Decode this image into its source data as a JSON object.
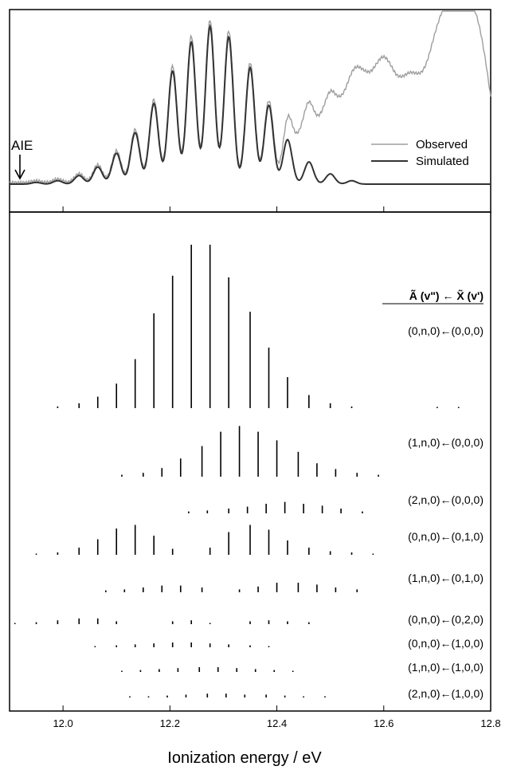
{
  "chart_data": [
    {
      "type": "line",
      "panel": "top",
      "xlim": [
        11.9,
        12.8
      ],
      "grid": false,
      "legend": {
        "placement": "right",
        "entries": [
          "Observed",
          "Simulated"
        ]
      },
      "annotation": {
        "text": "AIE",
        "x": 11.91
      },
      "colors": {
        "Observed": "#9e9e9e",
        "Simulated": "#333333"
      },
      "simulated_peaks": [
        {
          "x": 11.95,
          "y": 0.01
        },
        {
          "x": 11.99,
          "y": 0.02
        },
        {
          "x": 12.03,
          "y": 0.05
        },
        {
          "x": 12.065,
          "y": 0.1
        },
        {
          "x": 12.1,
          "y": 0.18
        },
        {
          "x": 12.135,
          "y": 0.3
        },
        {
          "x": 12.17,
          "y": 0.47
        },
        {
          "x": 12.205,
          "y": 0.66
        },
        {
          "x": 12.24,
          "y": 0.83
        },
        {
          "x": 12.275,
          "y": 0.92
        },
        {
          "x": 12.31,
          "y": 0.86
        },
        {
          "x": 12.35,
          "y": 0.68
        },
        {
          "x": 12.385,
          "y": 0.46
        },
        {
          "x": 12.42,
          "y": 0.26
        },
        {
          "x": 12.46,
          "y": 0.13
        },
        {
          "x": 12.5,
          "y": 0.06
        },
        {
          "x": 12.54,
          "y": 0.02
        }
      ],
      "observed_extra": [
        {
          "x": 12.45,
          "y": 0.32
        },
        {
          "x": 12.5,
          "y": 0.45
        },
        {
          "x": 12.55,
          "y": 0.65
        },
        {
          "x": 12.6,
          "y": 0.72
        },
        {
          "x": 12.65,
          "y": 0.6
        },
        {
          "x": 12.7,
          "y": 0.78
        },
        {
          "x": 12.74,
          "y": 1.0
        },
        {
          "x": 12.78,
          "y": 0.8
        }
      ]
    },
    {
      "type": "stick",
      "panel": "bottom",
      "xlim": [
        11.9,
        12.8
      ],
      "xticks": [
        12.0,
        12.2,
        12.4,
        12.6,
        12.8
      ],
      "xtick_labels": [
        "12.0",
        "12.2",
        "12.4",
        "12.6",
        "12.8"
      ],
      "xlabel": "Ionization energy / eV",
      "header": "Ã (v\") ← X̃ (v')",
      "series": [
        {
          "name": "(0,n,0)←(0,0,0)",
          "x": [
            11.99,
            12.03,
            12.065,
            12.1,
            12.135,
            12.17,
            12.205,
            12.24,
            12.275,
            12.31,
            12.35,
            12.385,
            12.42,
            12.46,
            12.5,
            12.54,
            12.7,
            12.74
          ],
          "y": [
            0.01,
            0.03,
            0.07,
            0.15,
            0.3,
            0.58,
            0.81,
            1.0,
            1.0,
            0.8,
            0.59,
            0.37,
            0.19,
            0.08,
            0.03,
            0.01,
            0.005,
            0.005
          ]
        },
        {
          "name": "(1,n,0)←(0,0,0)",
          "x": [
            12.11,
            12.15,
            12.185,
            12.22,
            12.26,
            12.295,
            12.33,
            12.365,
            12.4,
            12.44,
            12.475,
            12.51,
            12.55,
            12.59
          ],
          "y": [
            0.02,
            0.04,
            0.09,
            0.19,
            0.32,
            0.47,
            0.53,
            0.47,
            0.38,
            0.26,
            0.14,
            0.08,
            0.04,
            0.02
          ]
        },
        {
          "name": "(2,n,0)←(0,0,0)",
          "x": [
            12.235,
            12.27,
            12.31,
            12.345,
            12.38,
            12.415,
            12.45,
            12.485,
            12.52,
            12.56
          ],
          "y": [
            0.02,
            0.03,
            0.05,
            0.07,
            0.1,
            0.12,
            0.1,
            0.08,
            0.05,
            0.02
          ]
        },
        {
          "name": "(0,n,0)←(0,1,0)",
          "x": [
            11.95,
            11.99,
            12.03,
            12.065,
            12.1,
            12.135,
            12.17,
            12.205,
            12.275,
            12.31,
            12.35,
            12.385,
            12.42,
            12.46,
            12.5,
            12.54,
            12.58
          ],
          "y": [
            0.01,
            0.02,
            0.06,
            0.13,
            0.22,
            0.25,
            0.16,
            0.05,
            0.06,
            0.19,
            0.25,
            0.21,
            0.12,
            0.06,
            0.03,
            0.02,
            0.01
          ]
        },
        {
          "name": "(1,n,0)←(0,1,0)",
          "x": [
            12.08,
            12.115,
            12.15,
            12.185,
            12.22,
            12.26,
            12.33,
            12.365,
            12.4,
            12.44,
            12.475,
            12.51,
            12.55
          ],
          "y": [
            0.02,
            0.03,
            0.05,
            0.07,
            0.07,
            0.05,
            0.03,
            0.06,
            0.1,
            0.1,
            0.08,
            0.05,
            0.03
          ]
        },
        {
          "name": "(0,n,0)←(0,2,0)",
          "x": [
            11.91,
            11.95,
            11.99,
            12.03,
            12.065,
            12.1,
            12.205,
            12.24,
            12.275,
            12.35,
            12.385,
            12.42,
            12.46
          ],
          "y": [
            0.01,
            0.02,
            0.04,
            0.06,
            0.06,
            0.03,
            0.03,
            0.04,
            0.01,
            0.03,
            0.04,
            0.03,
            0.02
          ]
        },
        {
          "name": "(0,n,0)←(1,0,0)",
          "x": [
            12.06,
            12.1,
            12.135,
            12.17,
            12.205,
            12.24,
            12.275,
            12.31,
            12.35,
            12.385
          ],
          "y": [
            0.01,
            0.02,
            0.03,
            0.04,
            0.05,
            0.05,
            0.04,
            0.03,
            0.02,
            0.01
          ]
        },
        {
          "name": "(1,n,0)←(1,0,0)",
          "x": [
            12.11,
            12.145,
            12.18,
            12.215,
            12.255,
            12.29,
            12.325,
            12.36,
            12.395,
            12.43
          ],
          "y": [
            0.01,
            0.02,
            0.03,
            0.04,
            0.05,
            0.05,
            0.04,
            0.03,
            0.02,
            0.01
          ]
        },
        {
          "name": "(2,n,0)←(1,0,0)",
          "x": [
            12.125,
            12.16,
            12.195,
            12.23,
            12.27,
            12.305,
            12.34,
            12.38,
            12.415,
            12.45,
            12.49
          ],
          "y": [
            0.01,
            0.01,
            0.02,
            0.03,
            0.04,
            0.04,
            0.03,
            0.03,
            0.02,
            0.01,
            0.01
          ]
        }
      ]
    }
  ]
}
